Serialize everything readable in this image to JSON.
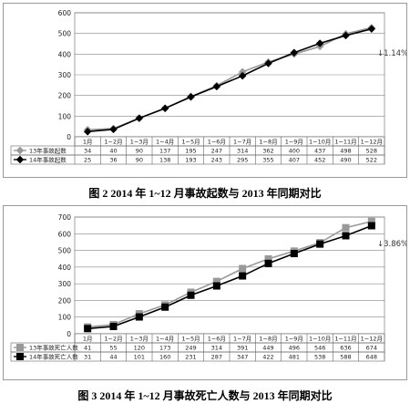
{
  "chart_data": [
    {
      "type": "line",
      "title": "",
      "ylim": [
        0,
        600
      ],
      "yticks": [
        0,
        100,
        200,
        300,
        400,
        500,
        600
      ],
      "grid": true,
      "legend": "table-below",
      "categories": [
        "1月",
        "1~2月",
        "1~3月",
        "1~4月",
        "1~5月",
        "1~6月",
        "1~7月",
        "1~8月",
        "1~9月",
        "1~10月",
        "1~11月",
        "1~12月"
      ],
      "series": [
        {
          "name": "13年事故起数",
          "color": "#999999",
          "marker": "diamond",
          "values": [
            34,
            40,
            90,
            137,
            195,
            247,
            314,
            362,
            400,
            437,
            498,
            528
          ]
        },
        {
          "name": "14年事故起数",
          "color": "#000000",
          "marker": "diamond",
          "values": [
            25,
            36,
            90,
            138,
            193,
            243,
            295,
            355,
            407,
            452,
            490,
            522
          ]
        }
      ],
      "annotation": "↓1.14%",
      "caption": "图 2    2014 年 1~12 月事故起数与 2013 年同期对比"
    },
    {
      "type": "line",
      "title": "",
      "ylim": [
        0,
        700
      ],
      "yticks": [
        0,
        100,
        200,
        300,
        400,
        500,
        600,
        700
      ],
      "grid": true,
      "legend": "table-below",
      "categories": [
        "1月",
        "1~2月",
        "1~3月",
        "1~4月",
        "1~5月",
        "1~6月",
        "1~7月",
        "1~8月",
        "1~9月",
        "1~10月",
        "1~11月",
        "1~12月"
      ],
      "series": [
        {
          "name": "13年事故死亡人数",
          "color": "#999999",
          "marker": "square",
          "values": [
            41,
            55,
            120,
            173,
            249,
            314,
            391,
            449,
            496,
            546,
            636,
            674
          ]
        },
        {
          "name": "14年事故死亡人数",
          "color": "#000000",
          "marker": "square",
          "values": [
            31,
            44,
            101,
            160,
            231,
            287,
            347,
            422,
            481,
            538,
            588,
            648
          ]
        }
      ],
      "annotation": "↓3.86%",
      "caption": "图 3    2014 年 1~12 月事故死亡人数与 2013 年同期对比"
    }
  ]
}
